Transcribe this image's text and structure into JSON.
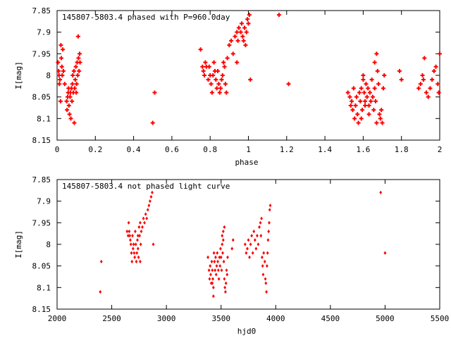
{
  "chart_data": [
    {
      "type": "scatter",
      "title": "145807-5803.4 phased with P=960.0day",
      "xlabel": "phase",
      "ylabel": "I[mag]",
      "xlim": [
        0,
        2
      ],
      "ylim": [
        8.15,
        7.85
      ],
      "y_inverted": true,
      "x_ticks": [
        "0",
        "0.2",
        "0.4",
        "0.6",
        "0.8",
        "1",
        "1.2",
        "1.4",
        "1.6",
        "1.8",
        "2"
      ],
      "x_tick_values": [
        0,
        0.2,
        0.4,
        0.6,
        0.8,
        1.0,
        1.2,
        1.4,
        1.6,
        1.8,
        2.0
      ],
      "y_ticks": [
        "7.85",
        "7.9",
        "7.95",
        "8",
        "8.05",
        "8.1",
        "8.15"
      ],
      "y_tick_values": [
        7.85,
        7.9,
        7.95,
        8.0,
        8.05,
        8.1,
        8.15
      ],
      "marker": "plus-heavy",
      "color": "#ff0000",
      "grid": false,
      "points": [
        [
          0.005,
          7.97
        ],
        [
          0.008,
          7.99
        ],
        [
          0.01,
          8.0
        ],
        [
          0.012,
          8.02
        ],
        [
          0.015,
          8.01
        ],
        [
          0.018,
          8.06
        ],
        [
          0.02,
          7.93
        ],
        [
          0.022,
          7.96
        ],
        [
          0.025,
          7.98
        ],
        [
          0.027,
          8.0
        ],
        [
          0.03,
          7.94
        ],
        [
          0.033,
          7.99
        ],
        [
          0.04,
          8.02
        ],
        [
          0.05,
          8.06
        ],
        [
          0.052,
          8.08
        ],
        [
          0.055,
          8.05
        ],
        [
          0.058,
          8.04
        ],
        [
          0.06,
          8.03
        ],
        [
          0.062,
          8.07
        ],
        [
          0.065,
          8.09
        ],
        [
          0.068,
          8.05
        ],
        [
          0.07,
          8.04
        ],
        [
          0.072,
          8.1
        ],
        [
          0.075,
          8.03
        ],
        [
          0.078,
          8.06
        ],
        [
          0.08,
          8.02
        ],
        [
          0.082,
          8.0
        ],
        [
          0.085,
          8.04
        ],
        [
          0.088,
          7.99
        ],
        [
          0.09,
          8.11
        ],
        [
          0.092,
          8.03
        ],
        [
          0.095,
          8.01
        ],
        [
          0.098,
          7.98
        ],
        [
          0.1,
          8.04
        ],
        [
          0.102,
          8.02
        ],
        [
          0.105,
          7.97
        ],
        [
          0.108,
          8.0
        ],
        [
          0.11,
          7.91
        ],
        [
          0.112,
          7.96
        ],
        [
          0.115,
          7.99
        ],
        [
          0.118,
          7.95
        ],
        [
          0.12,
          7.97
        ],
        [
          0.5,
          8.11
        ],
        [
          0.51,
          8.04
        ],
        [
          0.75,
          7.94
        ],
        [
          0.76,
          7.98
        ],
        [
          0.765,
          7.99
        ],
        [
          0.77,
          8.0
        ],
        [
          0.775,
          7.97
        ],
        [
          0.78,
          7.98
        ],
        [
          0.79,
          8.01
        ],
        [
          0.795,
          7.98
        ],
        [
          0.8,
          8.0
        ],
        [
          0.805,
          8.02
        ],
        [
          0.81,
          8.04
        ],
        [
          0.815,
          8.0
        ],
        [
          0.82,
          7.97
        ],
        [
          0.825,
          7.99
        ],
        [
          0.83,
          8.01
        ],
        [
          0.835,
          8.03
        ],
        [
          0.84,
          7.99
        ],
        [
          0.845,
          8.02
        ],
        [
          0.85,
          8.04
        ],
        [
          0.855,
          8.03
        ],
        [
          0.86,
          8.01
        ],
        [
          0.865,
          8.0
        ],
        [
          0.87,
          7.97
        ],
        [
          0.875,
          7.98
        ],
        [
          0.88,
          8.02
        ],
        [
          0.885,
          8.04
        ],
        [
          0.89,
          7.96
        ],
        [
          0.9,
          7.93
        ],
        [
          0.91,
          7.92
        ],
        [
          0.92,
          7.95
        ],
        [
          0.93,
          7.91
        ],
        [
          0.94,
          7.9
        ],
        [
          0.945,
          7.92
        ],
        [
          0.95,
          7.89
        ],
        [
          0.96,
          7.9
        ],
        [
          0.965,
          7.88
        ],
        [
          0.97,
          7.91
        ],
        [
          0.975,
          7.92
        ],
        [
          0.98,
          7.89
        ],
        [
          0.985,
          7.93
        ],
        [
          0.99,
          7.9
        ],
        [
          0.995,
          7.87
        ],
        [
          1.0,
          7.88
        ],
        [
          1.005,
          7.86
        ],
        [
          1.01,
          8.01
        ],
        [
          0.94,
          7.97
        ],
        [
          1.16,
          7.86
        ],
        [
          1.21,
          8.02
        ],
        [
          1.52,
          8.04
        ],
        [
          1.53,
          8.05
        ],
        [
          1.535,
          8.07
        ],
        [
          1.54,
          8.06
        ],
        [
          1.545,
          8.08
        ],
        [
          1.55,
          8.03
        ],
        [
          1.555,
          8.1
        ],
        [
          1.56,
          8.07
        ],
        [
          1.565,
          8.05
        ],
        [
          1.57,
          8.09
        ],
        [
          1.575,
          8.11
        ],
        [
          1.58,
          8.04
        ],
        [
          1.585,
          8.06
        ],
        [
          1.59,
          8.03
        ],
        [
          1.595,
          8.08
        ],
        [
          1.6,
          8.01
        ],
        [
          1.605,
          8.04
        ],
        [
          1.61,
          8.06
        ],
        [
          1.615,
          8.02
        ],
        [
          1.62,
          8.05
        ],
        [
          1.625,
          8.03
        ],
        [
          1.63,
          8.07
        ],
        [
          1.635,
          8.04
        ],
        [
          1.64,
          8.06
        ],
        [
          1.645,
          8.01
        ],
        [
          1.65,
          8.05
        ],
        [
          1.655,
          8.08
        ],
        [
          1.66,
          8.03
        ],
        [
          1.665,
          8.06
        ],
        [
          1.67,
          7.95
        ],
        [
          1.675,
          7.99
        ],
        [
          1.68,
          8.02
        ],
        [
          1.685,
          8.09
        ],
        [
          1.69,
          8.1
        ],
        [
          1.695,
          8.08
        ],
        [
          1.7,
          8.11
        ],
        [
          1.705,
          8.03
        ],
        [
          1.71,
          8.0
        ],
        [
          1.6,
          8.0
        ],
        [
          1.61,
          8.07
        ],
        [
          1.63,
          8.09
        ],
        [
          1.66,
          7.97
        ],
        [
          1.67,
          8.11
        ],
        [
          1.59,
          8.1
        ],
        [
          1.79,
          7.99
        ],
        [
          1.8,
          8.01
        ],
        [
          1.89,
          8.03
        ],
        [
          1.9,
          8.02
        ],
        [
          1.91,
          8.0
        ],
        [
          1.915,
          8.01
        ],
        [
          1.92,
          7.96
        ],
        [
          1.93,
          8.04
        ],
        [
          1.94,
          8.05
        ],
        [
          1.95,
          8.03
        ],
        [
          1.96,
          8.01
        ],
        [
          1.97,
          7.99
        ],
        [
          1.98,
          7.98
        ],
        [
          1.99,
          8.02
        ],
        [
          1.995,
          8.04
        ],
        [
          2.0,
          7.95
        ]
      ]
    },
    {
      "type": "scatter",
      "title": "145807-5803.4 not phased light curve",
      "xlabel": "hjd0",
      "ylabel": "I[mag]",
      "xlim": [
        2000,
        5500
      ],
      "ylim": [
        8.15,
        7.85
      ],
      "y_inverted": true,
      "x_ticks": [
        "2000",
        "2500",
        "3000",
        "3500",
        "4000",
        "4500",
        "5000",
        "5500"
      ],
      "x_tick_values": [
        2000,
        2500,
        3000,
        3500,
        4000,
        4500,
        5000,
        5500
      ],
      "y_ticks": [
        "7.85",
        "7.9",
        "7.95",
        "8",
        "8.05",
        "8.1",
        "8.15"
      ],
      "y_tick_values": [
        7.85,
        7.9,
        7.95,
        8.0,
        8.05,
        8.1,
        8.15
      ],
      "marker": "diamond",
      "color": "#ff0000",
      "grid": false,
      "points": [
        [
          2395,
          8.11
        ],
        [
          2405,
          8.04
        ],
        [
          2640,
          7.97
        ],
        [
          2650,
          7.98
        ],
        [
          2655,
          7.95
        ],
        [
          2660,
          7.97
        ],
        [
          2665,
          7.98
        ],
        [
          2670,
          7.99
        ],
        [
          2675,
          8.0
        ],
        [
          2680,
          8.02
        ],
        [
          2685,
          8.04
        ],
        [
          2690,
          7.98
        ],
        [
          2695,
          8.01
        ],
        [
          2700,
          8.0
        ],
        [
          2705,
          8.02
        ],
        [
          2710,
          8.03
        ],
        [
          2715,
          7.97
        ],
        [
          2720,
          8.0
        ],
        [
          2725,
          8.04
        ],
        [
          2730,
          8.02
        ],
        [
          2735,
          7.99
        ],
        [
          2740,
          8.01
        ],
        [
          2745,
          8.03
        ],
        [
          2750,
          7.96
        ],
        [
          2755,
          7.98
        ],
        [
          2760,
          8.04
        ],
        [
          2765,
          8.0
        ],
        [
          2770,
          7.97
        ],
        [
          2780,
          7.96
        ],
        [
          2790,
          7.94
        ],
        [
          2800,
          7.95
        ],
        [
          2810,
          7.93
        ],
        [
          2820,
          7.94
        ],
        [
          2830,
          7.92
        ],
        [
          2840,
          7.91
        ],
        [
          2850,
          7.9
        ],
        [
          2860,
          7.89
        ],
        [
          2870,
          7.88
        ],
        [
          2880,
          8.0
        ],
        [
          2760,
          7.95
        ],
        [
          2740,
          7.98
        ],
        [
          3380,
          8.03
        ],
        [
          3390,
          8.06
        ],
        [
          3395,
          8.08
        ],
        [
          3400,
          8.05
        ],
        [
          3405,
          8.07
        ],
        [
          3410,
          8.09
        ],
        [
          3415,
          8.04
        ],
        [
          3420,
          8.06
        ],
        [
          3425,
          8.08
        ],
        [
          3430,
          8.1
        ],
        [
          3435,
          8.02
        ],
        [
          3440,
          8.04
        ],
        [
          3445,
          8.06
        ],
        [
          3450,
          8.03
        ],
        [
          3455,
          8.07
        ],
        [
          3460,
          8.05
        ],
        [
          3465,
          8.02
        ],
        [
          3470,
          8.04
        ],
        [
          3475,
          8.06
        ],
        [
          3480,
          8.08
        ],
        [
          3485,
          8.03
        ],
        [
          3490,
          8.05
        ],
        [
          3495,
          8.01
        ],
        [
          3500,
          8.03
        ],
        [
          3505,
          8.06
        ],
        [
          3510,
          8.0
        ],
        [
          3515,
          8.02
        ],
        [
          3520,
          7.99
        ],
        [
          3525,
          8.04
        ],
        [
          3530,
          8.08
        ],
        [
          3535,
          8.1
        ],
        [
          3540,
          8.11
        ],
        [
          3545,
          8.09
        ],
        [
          3550,
          8.06
        ],
        [
          3555,
          8.07
        ],
        [
          3560,
          8.03
        ],
        [
          3510,
          7.98
        ],
        [
          3520,
          7.97
        ],
        [
          3530,
          7.96
        ],
        [
          3430,
          8.12
        ],
        [
          3420,
          8.09
        ],
        [
          3600,
          8.01
        ],
        [
          3610,
          7.99
        ],
        [
          3720,
          8.0
        ],
        [
          3730,
          8.02
        ],
        [
          3740,
          8.01
        ],
        [
          3750,
          7.99
        ],
        [
          3760,
          8.03
        ],
        [
          3770,
          8.0
        ],
        [
          3780,
          7.98
        ],
        [
          3790,
          8.02
        ],
        [
          3800,
          7.97
        ],
        [
          3810,
          7.99
        ],
        [
          3820,
          8.01
        ],
        [
          3830,
          7.98
        ],
        [
          3840,
          8.0
        ],
        [
          3850,
          7.96
        ],
        [
          3860,
          7.95
        ],
        [
          3865,
          7.98
        ],
        [
          3870,
          7.94
        ],
        [
          3875,
          8.03
        ],
        [
          3880,
          8.05
        ],
        [
          3885,
          8.07
        ],
        [
          3890,
          8.02
        ],
        [
          3900,
          8.04
        ],
        [
          3905,
          8.08
        ],
        [
          3910,
          8.09
        ],
        [
          3915,
          8.11
        ],
        [
          3920,
          8.05
        ],
        [
          3925,
          8.02
        ],
        [
          3930,
          7.99
        ],
        [
          3935,
          7.97
        ],
        [
          3940,
          7.95
        ],
        [
          3945,
          7.92
        ],
        [
          3950,
          7.91
        ],
        [
          4960,
          7.88
        ],
        [
          5000,
          8.02
        ]
      ]
    }
  ]
}
